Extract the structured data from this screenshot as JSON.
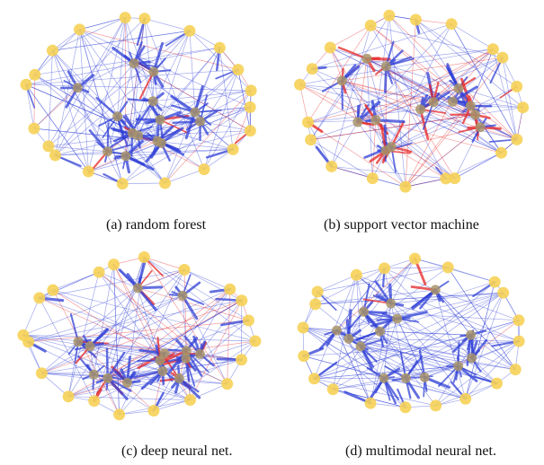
{
  "figure": {
    "panels": [
      {
        "key": "a",
        "caption": "(a) random forest",
        "seed": 11,
        "red_ratio": 0.12
      },
      {
        "key": "b",
        "caption": "(b) support vector machine",
        "seed": 23,
        "red_ratio": 0.38
      },
      {
        "key": "c",
        "caption": "(c) deep neural net.",
        "seed": 37,
        "red_ratio": 0.22
      },
      {
        "key": "d",
        "caption": "(d) multimodal neural net.",
        "seed": 53,
        "red_ratio": 0.03
      }
    ],
    "colors": {
      "node_fill": "#f6d256",
      "inner_node_fill": "#a8946a",
      "edge_blue": "#2f3fd6",
      "edge_red": "#e52626"
    }
  }
}
